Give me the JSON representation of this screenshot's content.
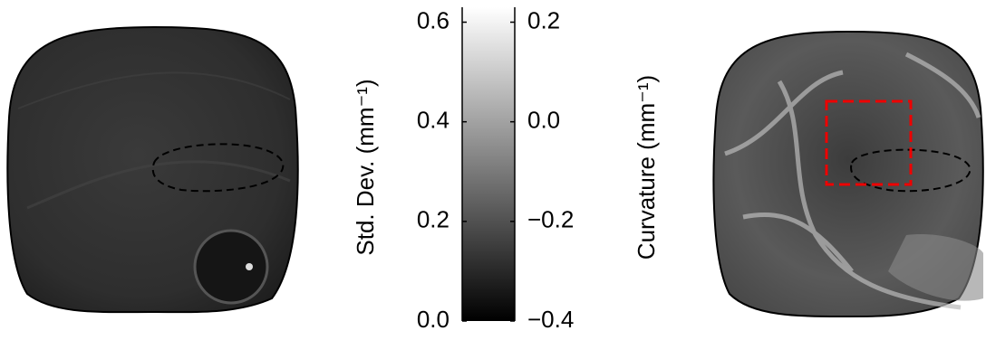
{
  "chart_data": {
    "type": "colorbar",
    "ylabel": "Std. Dev. (mm⁻¹)",
    "y2label": "Curvature (mm⁻¹)",
    "ylim": [
      0,
      0.63
    ],
    "yticks": [
      {
        "value": 0,
        "label": "0.0"
      },
      0.2,
      0.4,
      0.6
    ],
    "y2lim": [
      -0.4,
      0.23
    ],
    "y2ticks": [
      {
        "value": -0.4,
        "label": "−0.4"
      },
      {
        "value": -0.2,
        "label": "−0.2"
      },
      {
        "value": 0,
        "label": "0.0"
      },
      0.2
    ],
    "colormap": [
      "#000000",
      "#ffffff"
    ]
  }
}
